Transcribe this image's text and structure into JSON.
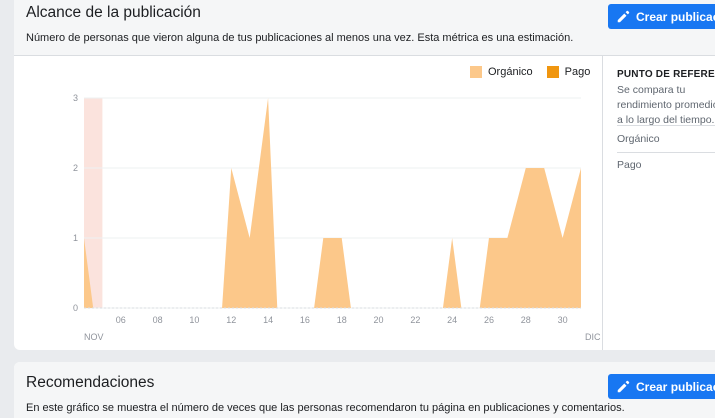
{
  "section1": {
    "title": "Alcance de la publicación",
    "subtitle": "Número de personas que vieron alguna de tus publicaciones al menos una vez. Esta métrica es una estimación.",
    "create_button": "Crear publicación"
  },
  "benchmark": {
    "title": "PUNTO DE REFERENCIA",
    "description": "Se compara tu rendimiento promedio a lo largo del tiempo.",
    "items": [
      "Orgánico",
      "Pago"
    ]
  },
  "section2": {
    "title": "Recomendaciones",
    "subtitle": "En este gráfico se muestra el número de veces que las personas recomendaron tu página en publicaciones y comentarios.",
    "create_button": "Crear publicación"
  },
  "colors": {
    "organic": "#fcc88a",
    "paid": "#f0960f",
    "highlight": "#fbe3dd",
    "accent": "#1877f2"
  },
  "chart_data": {
    "type": "area",
    "legend": [
      "Orgánico",
      "Pago"
    ],
    "legend_position": "top-right",
    "x": [
      4,
      5,
      6,
      7,
      8,
      9,
      10,
      11,
      12,
      13,
      14,
      15,
      16,
      17,
      18,
      19,
      20,
      21,
      22,
      23,
      24,
      25,
      26,
      27,
      28,
      29,
      30,
      31
    ],
    "x_tick_labels": [
      "06",
      "08",
      "10",
      "12",
      "14",
      "16",
      "18",
      "20",
      "22",
      "24",
      "26",
      "28",
      "30"
    ],
    "x_tick_values": [
      6,
      8,
      10,
      12,
      14,
      16,
      18,
      20,
      22,
      24,
      26,
      28,
      30
    ],
    "x_start_label": "NOV",
    "x_end_label": "DIC",
    "y_ticks": [
      0,
      1,
      2,
      3
    ],
    "ylim": [
      0,
      3
    ],
    "series": [
      {
        "name": "Orgánico",
        "values": [
          1,
          0,
          0,
          0,
          0,
          0,
          0,
          0,
          2,
          1,
          3,
          0,
          0,
          1,
          1,
          0,
          0,
          0,
          0,
          0,
          1,
          0,
          1,
          1,
          2,
          2,
          1,
          2
        ]
      },
      {
        "name": "Pago",
        "values": [
          0,
          0,
          0,
          0,
          0,
          0,
          0,
          0,
          0,
          0,
          0,
          0,
          0,
          0,
          0,
          0,
          0,
          0,
          0,
          0,
          0,
          0,
          0,
          0,
          0,
          0,
          0,
          0
        ]
      }
    ]
  }
}
